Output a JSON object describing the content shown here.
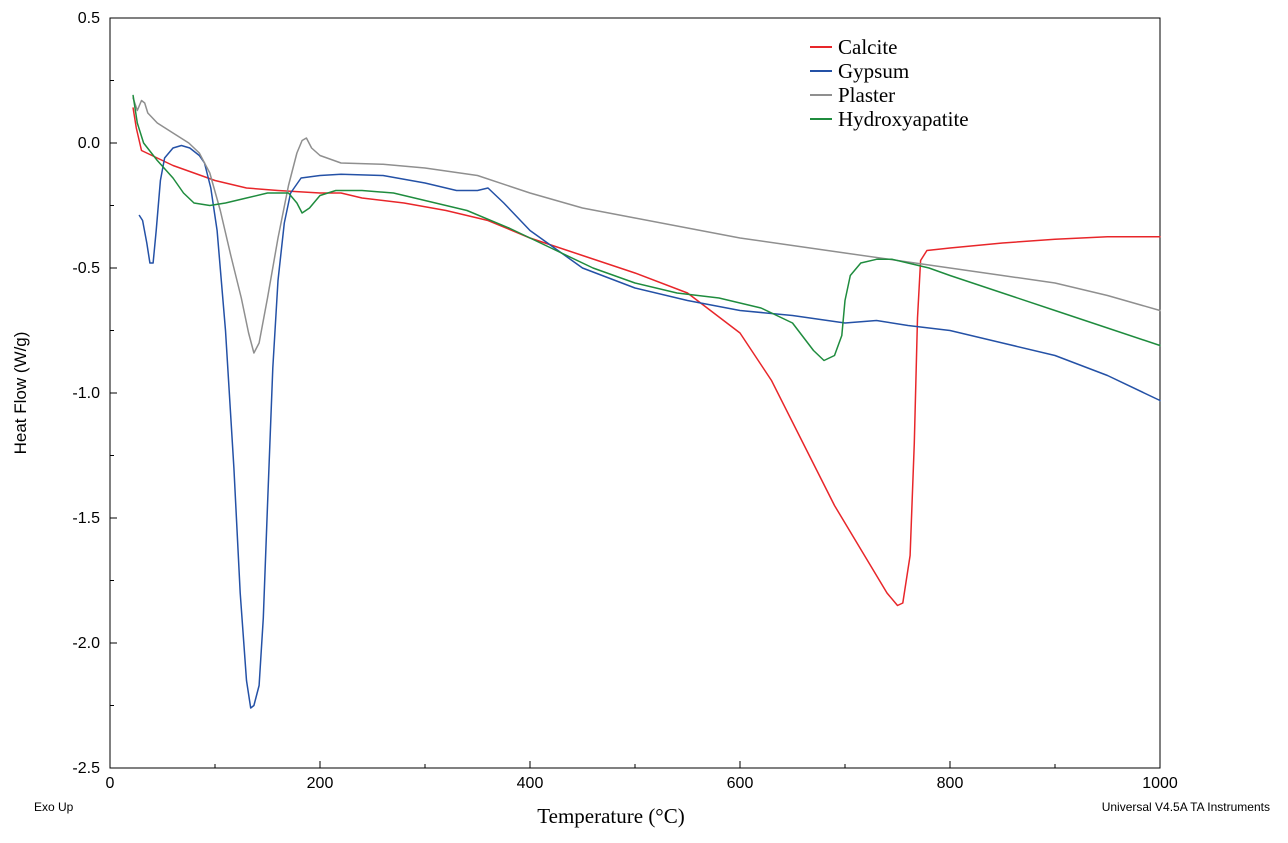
{
  "chart_data": {
    "type": "line",
    "title": "",
    "xlabel": "Temperature (°C)",
    "ylabel": "Heat Flow (W/g)",
    "xlim": [
      0,
      1000
    ],
    "ylim": [
      -2.5,
      0.5
    ],
    "x_ticks": [
      0,
      200,
      400,
      600,
      800,
      1000
    ],
    "x_tick_labels": [
      "0",
      "200",
      "400",
      "600",
      "800",
      "1000"
    ],
    "y_ticks": [
      0.5,
      0.0,
      -0.5,
      -1.0,
      -1.5,
      -2.0,
      -2.5
    ],
    "y_tick_labels": [
      "0.5",
      "0.0",
      "-0.5",
      "-1.0",
      "-1.5",
      "-2.0",
      "-2.5"
    ],
    "grid": false,
    "legend_position": "top-right",
    "annotations": {
      "left": "Exo Up",
      "right": "Universal V4.5A TA Instruments"
    },
    "series": [
      {
        "name": "Calcite",
        "color": "#e8262a",
        "points": [
          [
            22,
            0.14
          ],
          [
            25,
            0.06
          ],
          [
            30,
            -0.03
          ],
          [
            40,
            -0.05
          ],
          [
            60,
            -0.09
          ],
          [
            80,
            -0.12
          ],
          [
            100,
            -0.15
          ],
          [
            130,
            -0.18
          ],
          [
            160,
            -0.19
          ],
          [
            200,
            -0.2
          ],
          [
            220,
            -0.2
          ],
          [
            240,
            -0.22
          ],
          [
            280,
            -0.24
          ],
          [
            320,
            -0.27
          ],
          [
            360,
            -0.31
          ],
          [
            400,
            -0.38
          ],
          [
            450,
            -0.45
          ],
          [
            500,
            -0.52
          ],
          [
            550,
            -0.6
          ],
          [
            600,
            -0.76
          ],
          [
            630,
            -0.95
          ],
          [
            660,
            -1.2
          ],
          [
            690,
            -1.45
          ],
          [
            720,
            -1.66
          ],
          [
            740,
            -1.8
          ],
          [
            750,
            -1.85
          ],
          [
            755,
            -1.84
          ],
          [
            762,
            -1.65
          ],
          [
            766,
            -1.2
          ],
          [
            769,
            -0.7
          ],
          [
            772,
            -0.47
          ],
          [
            778,
            -0.43
          ],
          [
            800,
            -0.42
          ],
          [
            850,
            -0.4
          ],
          [
            900,
            -0.385
          ],
          [
            950,
            -0.375
          ],
          [
            1000,
            -0.375
          ]
        ]
      },
      {
        "name": "Gypsum",
        "color": "#2451a6",
        "points": [
          [
            28,
            -0.29
          ],
          [
            31,
            -0.31
          ],
          [
            35,
            -0.4
          ],
          [
            38,
            -0.48
          ],
          [
            41,
            -0.48
          ],
          [
            44,
            -0.35
          ],
          [
            48,
            -0.15
          ],
          [
            52,
            -0.06
          ],
          [
            60,
            -0.02
          ],
          [
            68,
            -0.01
          ],
          [
            76,
            -0.02
          ],
          [
            85,
            -0.05
          ],
          [
            90,
            -0.08
          ],
          [
            96,
            -0.18
          ],
          [
            102,
            -0.35
          ],
          [
            110,
            -0.75
          ],
          [
            118,
            -1.3
          ],
          [
            124,
            -1.8
          ],
          [
            130,
            -2.15
          ],
          [
            134,
            -2.26
          ],
          [
            137,
            -2.25
          ],
          [
            142,
            -2.17
          ],
          [
            146,
            -1.9
          ],
          [
            150,
            -1.45
          ],
          [
            155,
            -0.9
          ],
          [
            160,
            -0.55
          ],
          [
            166,
            -0.32
          ],
          [
            172,
            -0.2
          ],
          [
            182,
            -0.14
          ],
          [
            200,
            -0.13
          ],
          [
            220,
            -0.125
          ],
          [
            260,
            -0.13
          ],
          [
            300,
            -0.16
          ],
          [
            330,
            -0.19
          ],
          [
            350,
            -0.19
          ],
          [
            360,
            -0.18
          ],
          [
            375,
            -0.24
          ],
          [
            400,
            -0.35
          ],
          [
            450,
            -0.5
          ],
          [
            500,
            -0.58
          ],
          [
            550,
            -0.63
          ],
          [
            600,
            -0.67
          ],
          [
            650,
            -0.69
          ],
          [
            700,
            -0.72
          ],
          [
            730,
            -0.71
          ],
          [
            760,
            -0.73
          ],
          [
            800,
            -0.75
          ],
          [
            850,
            -0.8
          ],
          [
            900,
            -0.85
          ],
          [
            950,
            -0.93
          ],
          [
            1000,
            -1.03
          ]
        ]
      },
      {
        "name": "Plaster",
        "color": "#8f8f8f",
        "points": [
          [
            22,
            0.18
          ],
          [
            26,
            0.13
          ],
          [
            30,
            0.17
          ],
          [
            33,
            0.16
          ],
          [
            36,
            0.12
          ],
          [
            45,
            0.08
          ],
          [
            60,
            0.04
          ],
          [
            75,
            0.0
          ],
          [
            85,
            -0.04
          ],
          [
            95,
            -0.12
          ],
          [
            105,
            -0.27
          ],
          [
            115,
            -0.45
          ],
          [
            125,
            -0.62
          ],
          [
            132,
            -0.76
          ],
          [
            137,
            -0.84
          ],
          [
            142,
            -0.8
          ],
          [
            150,
            -0.62
          ],
          [
            160,
            -0.38
          ],
          [
            170,
            -0.17
          ],
          [
            178,
            -0.04
          ],
          [
            183,
            0.01
          ],
          [
            187,
            0.02
          ],
          [
            192,
            -0.02
          ],
          [
            200,
            -0.05
          ],
          [
            220,
            -0.08
          ],
          [
            260,
            -0.085
          ],
          [
            300,
            -0.1
          ],
          [
            350,
            -0.13
          ],
          [
            400,
            -0.2
          ],
          [
            450,
            -0.26
          ],
          [
            500,
            -0.3
          ],
          [
            550,
            -0.34
          ],
          [
            600,
            -0.38
          ],
          [
            650,
            -0.41
          ],
          [
            700,
            -0.44
          ],
          [
            750,
            -0.47
          ],
          [
            800,
            -0.5
          ],
          [
            850,
            -0.53
          ],
          [
            900,
            -0.56
          ],
          [
            950,
            -0.61
          ],
          [
            1000,
            -0.67
          ]
        ]
      },
      {
        "name": "Hydroxyapatite",
        "color": "#1f8c3e",
        "points": [
          [
            22,
            0.19
          ],
          [
            26,
            0.08
          ],
          [
            32,
            0.0
          ],
          [
            45,
            -0.07
          ],
          [
            60,
            -0.14
          ],
          [
            70,
            -0.2
          ],
          [
            80,
            -0.24
          ],
          [
            95,
            -0.25
          ],
          [
            110,
            -0.24
          ],
          [
            130,
            -0.22
          ],
          [
            150,
            -0.2
          ],
          [
            170,
            -0.2
          ],
          [
            178,
            -0.24
          ],
          [
            183,
            -0.28
          ],
          [
            190,
            -0.26
          ],
          [
            200,
            -0.21
          ],
          [
            215,
            -0.19
          ],
          [
            240,
            -0.19
          ],
          [
            270,
            -0.2
          ],
          [
            300,
            -0.23
          ],
          [
            340,
            -0.27
          ],
          [
            380,
            -0.34
          ],
          [
            420,
            -0.42
          ],
          [
            460,
            -0.5
          ],
          [
            500,
            -0.56
          ],
          [
            540,
            -0.6
          ],
          [
            580,
            -0.62
          ],
          [
            620,
            -0.66
          ],
          [
            650,
            -0.72
          ],
          [
            670,
            -0.83
          ],
          [
            680,
            -0.87
          ],
          [
            690,
            -0.85
          ],
          [
            697,
            -0.77
          ],
          [
            700,
            -0.63
          ],
          [
            705,
            -0.53
          ],
          [
            715,
            -0.48
          ],
          [
            730,
            -0.465
          ],
          [
            745,
            -0.465
          ],
          [
            760,
            -0.48
          ],
          [
            780,
            -0.5
          ],
          [
            800,
            -0.53
          ],
          [
            850,
            -0.6
          ],
          [
            900,
            -0.67
          ],
          [
            950,
            -0.74
          ],
          [
            1000,
            -0.81
          ]
        ]
      }
    ]
  }
}
